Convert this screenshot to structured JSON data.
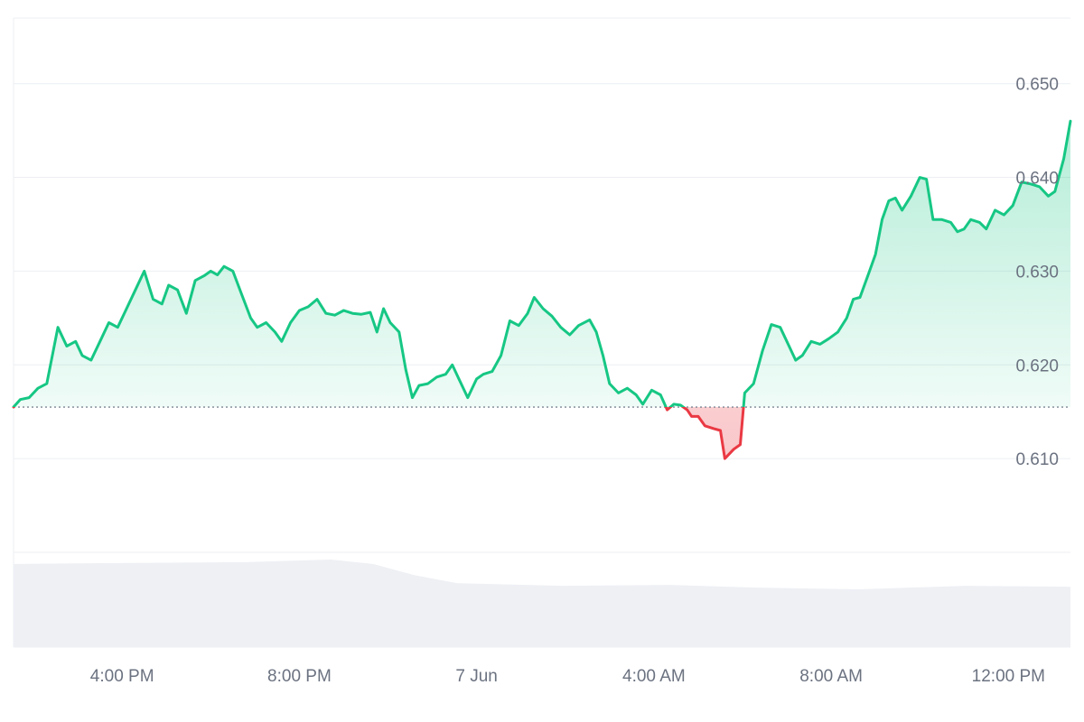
{
  "chart_data": {
    "type": "line",
    "title": "",
    "xlabel": "",
    "ylabel": "",
    "baseline": 0.6155,
    "ylim": [
      0.6,
      0.657
    ],
    "y_ticks": [
      {
        "value": 0.61,
        "label": "0.610"
      },
      {
        "value": 0.62,
        "label": "0.620"
      },
      {
        "value": 0.63,
        "label": "0.630"
      },
      {
        "value": 0.64,
        "label": "0.640"
      },
      {
        "value": 0.65,
        "label": "0.650"
      }
    ],
    "x_ticks": [
      {
        "value": 4.0,
        "label": "4:00 PM"
      },
      {
        "value": 8.0,
        "label": "8:00 PM"
      },
      {
        "value": 12.0,
        "label": "7 Jun"
      },
      {
        "value": 16.0,
        "label": "4:00 AM"
      },
      {
        "value": 20.0,
        "label": "8:00 AM"
      },
      {
        "value": 24.0,
        "label": "12:00 PM"
      }
    ],
    "xlim": [
      1.55,
      25.4
    ],
    "colors": {
      "up": "#16c784",
      "down": "#ea3943",
      "grid": "#eceff3",
      "volume": "#eef0f4",
      "baseline": "#7c8592"
    },
    "series": [
      {
        "values": [
          [
            1.55,
            0.6155
          ],
          [
            1.7,
            0.6163
          ],
          [
            1.9,
            0.6165
          ],
          [
            2.1,
            0.6175
          ],
          [
            2.3,
            0.618
          ],
          [
            2.55,
            0.624
          ],
          [
            2.75,
            0.622
          ],
          [
            2.95,
            0.6225
          ],
          [
            3.1,
            0.621
          ],
          [
            3.3,
            0.6205
          ],
          [
            3.5,
            0.6225
          ],
          [
            3.7,
            0.6245
          ],
          [
            3.9,
            0.624
          ],
          [
            4.1,
            0.626
          ],
          [
            4.3,
            0.628
          ],
          [
            4.5,
            0.63
          ],
          [
            4.7,
            0.627
          ],
          [
            4.9,
            0.6265
          ],
          [
            5.05,
            0.6285
          ],
          [
            5.25,
            0.628
          ],
          [
            5.45,
            0.6255
          ],
          [
            5.65,
            0.629
          ],
          [
            5.85,
            0.6295
          ],
          [
            6.0,
            0.63
          ],
          [
            6.15,
            0.6296
          ],
          [
            6.3,
            0.6305
          ],
          [
            6.5,
            0.63
          ],
          [
            6.7,
            0.6275
          ],
          [
            6.9,
            0.625
          ],
          [
            7.05,
            0.624
          ],
          [
            7.25,
            0.6245
          ],
          [
            7.45,
            0.6235
          ],
          [
            7.6,
            0.6225
          ],
          [
            7.8,
            0.6245
          ],
          [
            8.0,
            0.6258
          ],
          [
            8.2,
            0.6262
          ],
          [
            8.4,
            0.627
          ],
          [
            8.6,
            0.6255
          ],
          [
            8.8,
            0.6253
          ],
          [
            9.0,
            0.6258
          ],
          [
            9.2,
            0.6255
          ],
          [
            9.4,
            0.6254
          ],
          [
            9.6,
            0.6256
          ],
          [
            9.75,
            0.6235
          ],
          [
            9.9,
            0.626
          ],
          [
            10.05,
            0.6245
          ],
          [
            10.25,
            0.6235
          ],
          [
            10.4,
            0.6195
          ],
          [
            10.55,
            0.6165
          ],
          [
            10.7,
            0.6178
          ],
          [
            10.9,
            0.618
          ],
          [
            11.1,
            0.6187
          ],
          [
            11.3,
            0.619
          ],
          [
            11.45,
            0.62
          ],
          [
            11.6,
            0.6185
          ],
          [
            11.8,
            0.6165
          ],
          [
            12.0,
            0.6185
          ],
          [
            12.15,
            0.619
          ],
          [
            12.35,
            0.6193
          ],
          [
            12.55,
            0.621
          ],
          [
            12.75,
            0.6247
          ],
          [
            12.95,
            0.6242
          ],
          [
            13.15,
            0.6255
          ],
          [
            13.3,
            0.6272
          ],
          [
            13.5,
            0.626
          ],
          [
            13.7,
            0.6252
          ],
          [
            13.9,
            0.624
          ],
          [
            14.1,
            0.6232
          ],
          [
            14.3,
            0.6242
          ],
          [
            14.55,
            0.6248
          ],
          [
            14.7,
            0.6235
          ],
          [
            14.85,
            0.621
          ],
          [
            15.0,
            0.618
          ],
          [
            15.2,
            0.617
          ],
          [
            15.4,
            0.6175
          ],
          [
            15.6,
            0.6168
          ],
          [
            15.75,
            0.6158
          ],
          [
            15.95,
            0.6173
          ],
          [
            16.15,
            0.6168
          ],
          [
            16.3,
            0.6152
          ],
          [
            16.45,
            0.6158
          ],
          [
            16.6,
            0.6157
          ],
          [
            16.75,
            0.6152
          ],
          [
            16.85,
            0.6145
          ],
          [
            17.0,
            0.6145
          ],
          [
            17.15,
            0.6135
          ],
          [
            17.35,
            0.6132
          ],
          [
            17.5,
            0.613
          ],
          [
            17.6,
            0.61
          ],
          [
            17.8,
            0.611
          ],
          [
            17.95,
            0.6115
          ],
          [
            18.05,
            0.617
          ],
          [
            18.25,
            0.618
          ],
          [
            18.45,
            0.6215
          ],
          [
            18.65,
            0.6243
          ],
          [
            18.85,
            0.624
          ],
          [
            19.05,
            0.622
          ],
          [
            19.2,
            0.6205
          ],
          [
            19.35,
            0.621
          ],
          [
            19.55,
            0.6225
          ],
          [
            19.75,
            0.6222
          ],
          [
            19.95,
            0.6228
          ],
          [
            20.15,
            0.6235
          ],
          [
            20.35,
            0.625
          ],
          [
            20.5,
            0.627
          ],
          [
            20.65,
            0.6272
          ],
          [
            20.85,
            0.6298
          ],
          [
            21.0,
            0.6318
          ],
          [
            21.15,
            0.6355
          ],
          [
            21.3,
            0.6375
          ],
          [
            21.45,
            0.6378
          ],
          [
            21.6,
            0.6365
          ],
          [
            21.8,
            0.638
          ],
          [
            22.0,
            0.64
          ],
          [
            22.15,
            0.6398
          ],
          [
            22.3,
            0.6355
          ],
          [
            22.5,
            0.6355
          ],
          [
            22.7,
            0.6352
          ],
          [
            22.85,
            0.6342
          ],
          [
            23.0,
            0.6345
          ],
          [
            23.15,
            0.6355
          ],
          [
            23.35,
            0.6352
          ],
          [
            23.5,
            0.6345
          ],
          [
            23.7,
            0.6365
          ],
          [
            23.9,
            0.636
          ],
          [
            24.1,
            0.637
          ],
          [
            24.3,
            0.6395
          ],
          [
            24.5,
            0.6393
          ],
          [
            24.7,
            0.639
          ],
          [
            24.9,
            0.638
          ],
          [
            25.05,
            0.6385
          ],
          [
            25.25,
            0.642
          ],
          [
            25.4,
            0.646
          ]
        ]
      }
    ]
  }
}
